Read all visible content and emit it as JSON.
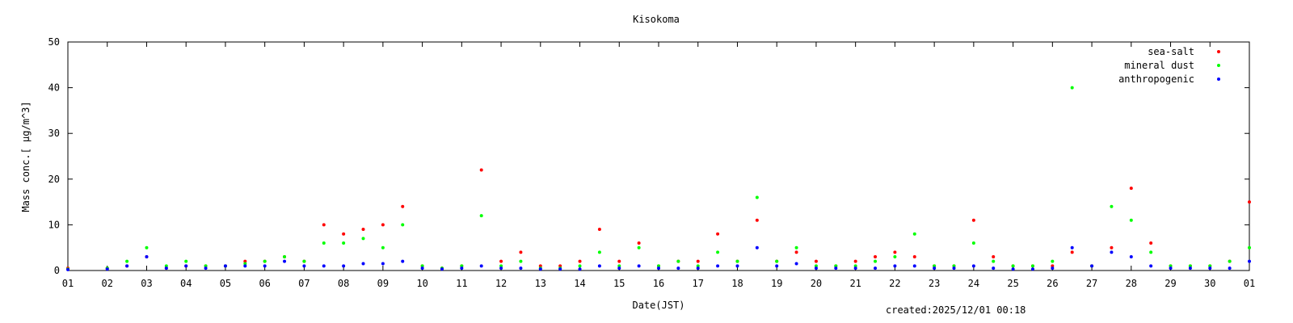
{
  "chart_data": {
    "type": "scatter",
    "title": "Kisokoma",
    "xlabel": "Date(JST)",
    "ylabel": "Mass conc.[ μg/m^3]",
    "xlim": [
      0,
      30
    ],
    "ylim": [
      0,
      50
    ],
    "x_ticks": [
      "01",
      "02",
      "03",
      "04",
      "05",
      "06",
      "07",
      "08",
      "09",
      "10",
      "11",
      "12",
      "13",
      "14",
      "15",
      "16",
      "17",
      "18",
      "19",
      "20",
      "21",
      "22",
      "23",
      "24",
      "25",
      "26",
      "27",
      "28",
      "29",
      "30",
      "01"
    ],
    "y_ticks": [
      0,
      10,
      20,
      30,
      40,
      50
    ],
    "legend_position": "top-right",
    "footer": "created:2025/12/01 00:18",
    "colors": {
      "sea_salt": "#ff0000",
      "mineral_dust": "#00ff00",
      "anthropogenic": "#0000ff"
    },
    "series": [
      {
        "name": "sea-salt",
        "x": [
          0,
          1,
          1.5,
          2,
          2.5,
          3,
          3.5,
          4,
          4.5,
          5,
          5.5,
          6,
          6.5,
          7,
          7.5,
          8,
          8.5,
          9,
          9.5,
          10,
          10.5,
          11,
          11.5,
          12,
          12.5,
          13,
          13.5,
          14,
          14.5,
          15,
          15.5,
          16,
          16.5,
          17,
          17.5,
          18,
          18.5,
          19,
          19.5,
          20,
          20.5,
          21,
          21.5,
          22,
          22.5,
          23,
          23.5,
          24,
          24.5,
          25,
          25.5,
          26,
          26.5,
          27,
          27.5,
          28,
          28.5,
          29,
          29.5,
          30
        ],
        "y": [
          0.5,
          0.5,
          1,
          3,
          0.5,
          1,
          1,
          1,
          2,
          2,
          3,
          2,
          10,
          8,
          9,
          10,
          14,
          1,
          0.5,
          1,
          22,
          2,
          4,
          1,
          1,
          2,
          9,
          2,
          6,
          1,
          2,
          2,
          8,
          2,
          11,
          2,
          4,
          2,
          1,
          2,
          3,
          4,
          3,
          1,
          1,
          11,
          3,
          1,
          1,
          1,
          4,
          1,
          5,
          18,
          6,
          1,
          1,
          1,
          2,
          15
        ]
      },
      {
        "name": "mineral dust",
        "x": [
          0,
          1,
          1.5,
          2,
          2.5,
          3,
          3.5,
          4,
          4.5,
          5,
          5.5,
          6,
          6.5,
          7,
          7.5,
          8,
          8.5,
          9,
          9.5,
          10,
          10.5,
          11,
          11.5,
          12,
          12.5,
          13,
          13.5,
          14,
          14.5,
          15,
          15.5,
          16,
          16.5,
          17,
          17.5,
          18,
          18.5,
          19,
          19.5,
          20,
          20.5,
          21,
          21.5,
          22,
          22.5,
          23,
          23.5,
          24,
          24.5,
          25,
          25.5,
          26,
          26.5,
          27,
          27.5,
          28,
          28.5,
          29,
          29.5,
          30
        ],
        "y": [
          0.3,
          0.5,
          2,
          5,
          1,
          2,
          1,
          1,
          1.5,
          2,
          3,
          2,
          6,
          6,
          7,
          5,
          10,
          1,
          0.5,
          1,
          12,
          1,
          2,
          0.5,
          0.5,
          1,
          4,
          1,
          5,
          1,
          2,
          1,
          4,
          2,
          16,
          2,
          5,
          1,
          1,
          1,
          2,
          3,
          8,
          1,
          1,
          6,
          2,
          1,
          1,
          2,
          40,
          1,
          14,
          11,
          4,
          1,
          1,
          1,
          2,
          5
        ]
      },
      {
        "name": "anthropogenic",
        "x": [
          0,
          1,
          1.5,
          2,
          2.5,
          3,
          3.5,
          4,
          4.5,
          5,
          5.5,
          6,
          6.5,
          7,
          7.5,
          8,
          8.5,
          9,
          9.5,
          10,
          10.5,
          11,
          11.5,
          12,
          12.5,
          13,
          13.5,
          14,
          14.5,
          15,
          15.5,
          16,
          16.5,
          17,
          17.5,
          18,
          18.5,
          19,
          19.5,
          20,
          20.5,
          21,
          21.5,
          22,
          22.5,
          23,
          23.5,
          24,
          24.5,
          25,
          25.5,
          26,
          26.5,
          27,
          27.5,
          28,
          28.5,
          29,
          29.5,
          30
        ],
        "y": [
          0.2,
          0.3,
          1,
          3,
          0.5,
          1,
          0.5,
          1,
          1,
          1,
          2,
          1,
          1,
          1,
          1.5,
          1.5,
          2,
          0.5,
          0.3,
          0.5,
          1,
          0.5,
          0.5,
          0.3,
          0.3,
          0.3,
          1,
          0.5,
          1,
          0.5,
          0.5,
          0.5,
          1,
          1,
          5,
          1,
          1.5,
          0.5,
          0.5,
          0.5,
          0.5,
          1,
          1,
          0.5,
          0.5,
          1,
          0.5,
          0.3,
          0.3,
          0.5,
          5,
          1,
          4,
          3,
          1,
          0.5,
          0.5,
          0.5,
          0.5,
          2
        ]
      }
    ]
  }
}
